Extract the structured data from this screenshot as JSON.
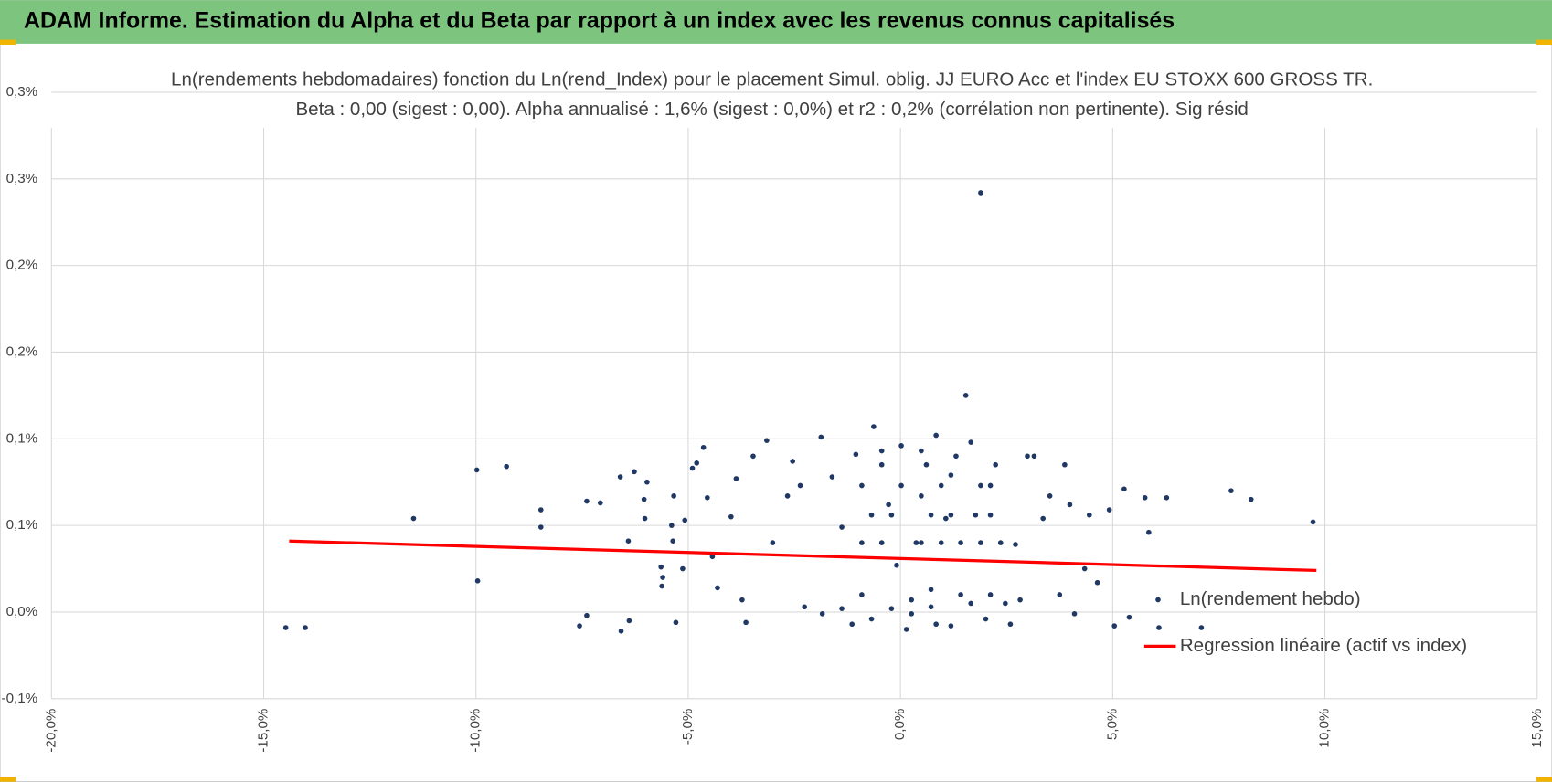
{
  "header": {
    "title": "ADAM Informe. Estimation du Alpha et du Beta par rapport à un index avec les revenus connus capitalisés"
  },
  "chart_data": {
    "type": "scatter",
    "title": "Ln(rendements hebdomadaires) fonction du Ln(rend_Index) pour le placement Simul. oblig. JJ EURO Acc et l'index EU STOXX 600 GROSS TR.",
    "subtitle": "Beta : 0,00 (sigest : 0,00). Alpha annualisé : 1,6% (sigest : 0,0%) et r2 : 0,2% (corrélation non pertinente). Sig résid",
    "xlim": [
      -20,
      15
    ],
    "xticks": [
      {
        "value": -20,
        "label": "-20,0%"
      },
      {
        "value": -15,
        "label": "-15,0%"
      },
      {
        "value": -10,
        "label": "-10,0%"
      },
      {
        "value": -5,
        "label": "-5,0%"
      },
      {
        "value": 0,
        "label": "0,0%"
      },
      {
        "value": 5,
        "label": "5,0%"
      },
      {
        "value": 10,
        "label": "10,0%"
      },
      {
        "value": 15,
        "label": "15,0%"
      }
    ],
    "ylim": [
      -0.05,
      0.3
    ],
    "yticks": [
      {
        "value": -0.05,
        "label": "-0,1%"
      },
      {
        "value": 0,
        "label": "0,0%"
      },
      {
        "value": 0.05,
        "label": "0,1%"
      },
      {
        "value": 0.1,
        "label": "0,1%"
      },
      {
        "value": 0.15,
        "label": "0,2%"
      },
      {
        "value": 0.2,
        "label": "0,2%"
      },
      {
        "value": 0.25,
        "label": "0,3%"
      },
      {
        "value": 0.3,
        "label": "0,3%"
      }
    ],
    "grid": true,
    "legend": "lower right",
    "series": [
      {
        "name": "Ln(rendement hebdo)",
        "type": "scatter",
        "color": "#203864",
        "x": [
          -14.48,
          -14.02,
          -11.47,
          -9.98,
          -9.96,
          -9.28,
          -8.47,
          -8.47,
          -7.56,
          -7.39,
          -7.39,
          -7.07,
          -6.6,
          -6.58,
          -6.41,
          -6.39,
          -6.27,
          -6.04,
          -6.02,
          -5.97,
          -5.64,
          -5.62,
          -5.6,
          -5.39,
          -5.36,
          -5.34,
          -5.29,
          -5.13,
          -5.08,
          -4.9,
          -4.8,
          -4.64,
          -4.55,
          -4.43,
          -4.31,
          -3.99,
          -3.87,
          -3.73,
          -3.64,
          -3.47,
          -3.15,
          -3.01,
          -2.66,
          -2.54,
          -2.36,
          -2.26,
          -1.87,
          -1.61,
          -1.38,
          -1.05,
          -0.91,
          -0.63,
          -0.44,
          -0.28,
          -0.09,
          0.02,
          0.14,
          0.26,
          0.37,
          0.49,
          0.61,
          0.72,
          0.84,
          0.96,
          1.07,
          1.19,
          1.31,
          1.42,
          1.54,
          1.66,
          1.77,
          1.89,
          2.01,
          2.12,
          2.24,
          2.36,
          2.47,
          2.59,
          2.71,
          2.82,
          2.99,
          3.15,
          3.36,
          3.52,
          3.75,
          3.87,
          3.99,
          4.1,
          4.34,
          4.45,
          4.64,
          4.92,
          5.04,
          5.27,
          5.39,
          5.76,
          5.85,
          6.09,
          6.27,
          7.09,
          7.79,
          8.26,
          9.72,
          -1.14,
          -0.68,
          -0.21,
          0.26,
          0.72,
          1.19,
          1.66,
          2.12,
          -1.38,
          -1.84,
          -0.91,
          -0.44,
          0.49,
          1.42,
          1.89,
          -0.68,
          -0.21,
          0.72,
          1.19,
          2.12,
          -0.91,
          0.02,
          0.96,
          1.89,
          -0.44,
          0.49,
          0.84
        ],
        "values": [
          -0.009,
          -0.009,
          0.054,
          0.082,
          0.018,
          0.084,
          0.059,
          0.049,
          -0.008,
          -0.002,
          0.064,
          0.063,
          0.078,
          -0.011,
          0.041,
          -0.005,
          0.081,
          0.065,
          0.054,
          0.075,
          0.026,
          0.015,
          0.02,
          0.05,
          0.041,
          0.067,
          -0.006,
          0.025,
          0.053,
          0.083,
          0.086,
          0.095,
          0.066,
          0.032,
          0.014,
          0.055,
          0.077,
          0.007,
          -0.006,
          0.09,
          0.099,
          0.04,
          0.067,
          0.087,
          0.073,
          0.003,
          0.101,
          0.078,
          0.049,
          0.091,
          0.01,
          0.107,
          0.085,
          0.062,
          0.027,
          0.096,
          -0.01,
          -0.001,
          0.04,
          0.067,
          0.085,
          0.003,
          -0.007,
          0.04,
          0.054,
          0.079,
          0.09,
          0.01,
          0.125,
          0.098,
          0.056,
          0.242,
          -0.004,
          0.073,
          0.085,
          0.04,
          0.005,
          -0.007,
          0.039,
          0.007,
          0.09,
          0.09,
          0.054,
          0.067,
          0.01,
          0.085,
          0.062,
          -0.001,
          0.025,
          0.056,
          0.017,
          0.059,
          -0.008,
          0.071,
          -0.003,
          0.066,
          0.046,
          -0.009,
          0.066,
          -0.009,
          0.07,
          0.065,
          0.052,
          -0.007,
          -0.004,
          0.002,
          0.007,
          0.013,
          -0.008,
          0.005,
          0.01,
          0.002,
          -0.001,
          0.04,
          0.04,
          0.04,
          0.04,
          0.04,
          0.056,
          0.056,
          0.056,
          0.056,
          0.056,
          0.073,
          0.073,
          0.073,
          0.073,
          0.093,
          0.093,
          0.102
        ]
      },
      {
        "name": "Regression linéaire (actif vs index)",
        "type": "line",
        "color": "#ff0000",
        "x": [
          -14.4,
          9.8
        ],
        "values": [
          0.041,
          0.024
        ]
      }
    ]
  }
}
